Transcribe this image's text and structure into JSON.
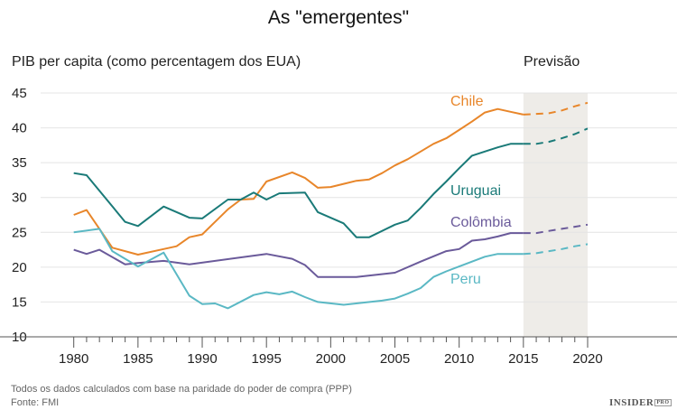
{
  "chart_data": {
    "type": "line",
    "title": "As \"emergentes\"",
    "ylabel": "PIB per capita (como percentagem dos EUA)",
    "xlabel": "",
    "forecast_label": "Previsão",
    "forecast_range": [
      2015,
      2020
    ],
    "xlim": [
      1980,
      2020
    ],
    "ylim": [
      10,
      45
    ],
    "x_ticks": [
      1980,
      1985,
      1990,
      1995,
      2000,
      2005,
      2010,
      2015,
      2020
    ],
    "y_ticks": [
      10,
      15,
      20,
      25,
      30,
      35,
      40,
      45
    ],
    "grid": "horizontal",
    "series": [
      {
        "name": "Chile",
        "color": "#e8862a",
        "x": [
          1980,
          1981,
          1983,
          1985,
          1987,
          1988,
          1989,
          1990,
          1992,
          1993,
          1994,
          1995,
          1997,
          1998,
          1999,
          2000,
          2002,
          2003,
          2004,
          2005,
          2006,
          2007,
          2008,
          2009,
          2010,
          2011,
          2012,
          2013,
          2014,
          2015
        ],
        "y": [
          27.5,
          28.2,
          22.8,
          21.8,
          22.6,
          23.0,
          24.3,
          24.7,
          28.3,
          29.7,
          29.8,
          32.3,
          33.6,
          32.8,
          31.4,
          31.5,
          32.4,
          32.6,
          33.5,
          34.6,
          35.5,
          36.6,
          37.7,
          38.5,
          39.7,
          40.9,
          42.2,
          42.7,
          42.3,
          41.9
        ],
        "forecast_x": [
          2015,
          2016,
          2017,
          2018,
          2019,
          2020
        ],
        "forecast_y": [
          41.9,
          42.0,
          42.1,
          42.5,
          43.1,
          43.6
        ]
      },
      {
        "name": "Uruguai",
        "color": "#1a7a78",
        "x": [
          1980,
          1981,
          1984,
          1985,
          1987,
          1989,
          1990,
          1992,
          1993,
          1994,
          1995,
          1996,
          1998,
          1999,
          2001,
          2002,
          2003,
          2005,
          2006,
          2007,
          2008,
          2009,
          2010,
          2011,
          2012,
          2013,
          2014,
          2015
        ],
        "y": [
          33.5,
          33.2,
          26.5,
          25.9,
          28.7,
          27.1,
          27.0,
          29.7,
          29.7,
          30.7,
          29.7,
          30.6,
          30.7,
          27.9,
          26.3,
          24.3,
          24.3,
          26.1,
          26.7,
          28.5,
          30.5,
          32.3,
          34.2,
          36.0,
          36.6,
          37.2,
          37.7,
          37.7
        ],
        "forecast_x": [
          2015,
          2016,
          2017,
          2018,
          2019,
          2020
        ],
        "forecast_y": [
          37.7,
          37.7,
          38.0,
          38.5,
          39.1,
          39.9
        ]
      },
      {
        "name": "Colômbia",
        "color": "#6a5a9a",
        "x": [
          1980,
          1981,
          1982,
          1984,
          1985,
          1987,
          1989,
          1995,
          1997,
          1998,
          1999,
          2002,
          2005,
          2007,
          2009,
          2010,
          2011,
          2012,
          2013,
          2014,
          2015
        ],
        "y": [
          22.5,
          21.9,
          22.5,
          20.4,
          20.6,
          20.9,
          20.4,
          21.9,
          21.2,
          20.3,
          18.6,
          18.6,
          19.2,
          20.8,
          22.3,
          22.6,
          23.8,
          24.0,
          24.4,
          24.9,
          24.9
        ],
        "forecast_x": [
          2015,
          2016,
          2017,
          2018,
          2019,
          2020
        ],
        "forecast_y": [
          24.9,
          24.9,
          25.2,
          25.5,
          25.8,
          26.1
        ]
      },
      {
        "name": "Peru",
        "color": "#5ab8c4",
        "x": [
          1980,
          1982,
          1983,
          1985,
          1987,
          1989,
          1990,
          1991,
          1992,
          1994,
          1995,
          1996,
          1997,
          1998,
          1999,
          2001,
          2004,
          2005,
          2006,
          2007,
          2008,
          2009,
          2010,
          2011,
          2012,
          2013,
          2014,
          2015
        ],
        "y": [
          25.0,
          25.5,
          22.3,
          20.1,
          22.1,
          15.9,
          14.7,
          14.8,
          14.1,
          16.0,
          16.4,
          16.1,
          16.5,
          15.7,
          15.0,
          14.6,
          15.2,
          15.5,
          16.2,
          17.0,
          18.6,
          19.4,
          20.1,
          20.8,
          21.5,
          21.9,
          21.9,
          21.9
        ],
        "forecast_x": [
          2015,
          2016,
          2017,
          2018,
          2019,
          2020
        ],
        "forecast_y": [
          21.9,
          22.0,
          22.3,
          22.6,
          23.0,
          23.3
        ]
      }
    ]
  },
  "footer": {
    "note": "Todos os dados calculados com base na paridade do poder de compra (PPP)",
    "source": "Fonte: FMI",
    "logo": "INSIDER PRO"
  }
}
